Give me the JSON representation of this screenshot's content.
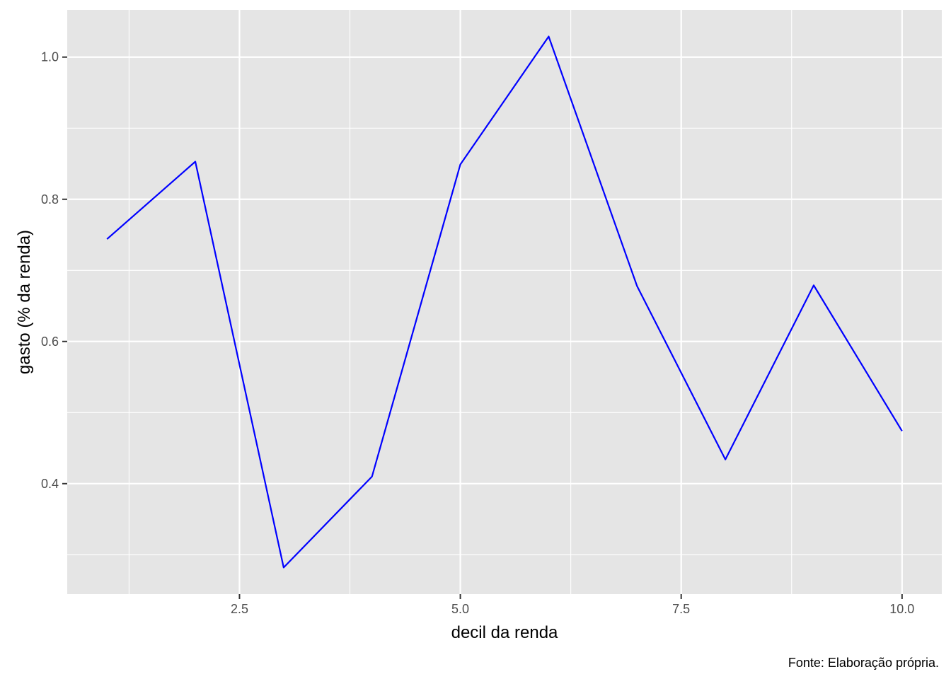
{
  "chart_data": {
    "type": "line",
    "title": "",
    "xlabel": "decil da renda",
    "ylabel": "gasto (% da renda)",
    "caption": "Fonte: Elaboração própria.",
    "x": [
      1,
      2,
      3,
      4,
      5,
      6,
      7,
      8,
      9,
      10
    ],
    "series": [
      {
        "values": [
          0.744,
          0.853,
          0.282,
          0.41,
          0.849,
          1.029,
          0.678,
          0.434,
          0.679,
          0.474
        ],
        "color": "#0000FF"
      }
    ],
    "xlim": [
      0.55,
      10.45
    ],
    "ylim": [
      0.2446,
      1.0664
    ],
    "x_ticks": [
      2.5,
      5.0,
      7.5,
      10.0
    ],
    "x_tick_labels": [
      "2.5",
      "5.0",
      "7.5",
      "10.0"
    ],
    "y_ticks": [
      0.4,
      0.6,
      0.8,
      1.0
    ],
    "y_tick_labels": [
      "0.4",
      "0.6",
      "0.8",
      "1.0"
    ],
    "x_minor_ticks": [
      1.25,
      3.75,
      6.25,
      8.75
    ],
    "y_minor_ticks": [
      0.3,
      0.5,
      0.7,
      0.9
    ],
    "grid": true,
    "legend": "none",
    "panel_color": "#E5E5E5",
    "grid_color": "#FFFFFF"
  }
}
